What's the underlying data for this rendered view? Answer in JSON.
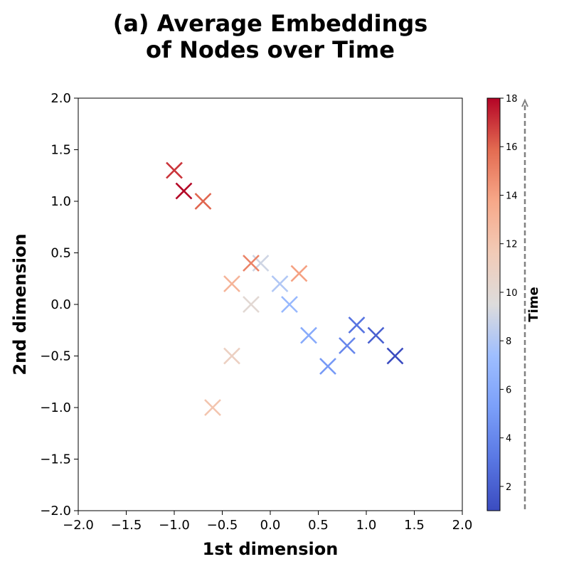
{
  "chart_data": {
    "type": "scatter",
    "title_line1": "(a) Average Embeddings",
    "title_line2": "of Nodes over Time",
    "xlabel": "1st dimension",
    "ylabel": "2nd dimension",
    "xlim": [
      -2.0,
      2.0
    ],
    "ylim": [
      -2.0,
      2.0
    ],
    "xticks": [
      "−2.0",
      "−1.5",
      "−1.0",
      "−0.5",
      "0.0",
      "0.5",
      "1.0",
      "1.5",
      "2.0"
    ],
    "yticks": [
      "−2.0",
      "−1.5",
      "−1.0",
      "−0.5",
      "0.0",
      "0.5",
      "1.0",
      "1.5",
      "2.0"
    ],
    "grid": false,
    "marker": "x",
    "colormap": "coolwarm",
    "colorbar": {
      "label": "Time",
      "range": [
        1,
        18
      ],
      "ticks": [
        "2",
        "4",
        "6",
        "8",
        "10",
        "12",
        "14",
        "16",
        "18"
      ]
    },
    "points": [
      {
        "time": 1,
        "x": 1.3,
        "y": -0.5
      },
      {
        "time": 2,
        "x": 1.1,
        "y": -0.3
      },
      {
        "time": 3,
        "x": 0.9,
        "y": -0.2
      },
      {
        "time": 4,
        "x": 0.8,
        "y": -0.4
      },
      {
        "time": 5,
        "x": 0.6,
        "y": -0.6
      },
      {
        "time": 6,
        "x": 0.4,
        "y": -0.3
      },
      {
        "time": 7,
        "x": 0.2,
        "y": 0.0
      },
      {
        "time": 8,
        "x": 0.1,
        "y": 0.2
      },
      {
        "time": 9,
        "x": -0.1,
        "y": 0.4
      },
      {
        "time": 10,
        "x": -0.2,
        "y": 0.0
      },
      {
        "time": 11,
        "x": -0.4,
        "y": -0.5
      },
      {
        "time": 12,
        "x": -0.6,
        "y": -1.0
      },
      {
        "time": 13,
        "x": -0.4,
        "y": 0.2
      },
      {
        "time": 14,
        "x": 0.3,
        "y": 0.3
      },
      {
        "time": 15,
        "x": -0.2,
        "y": 0.4
      },
      {
        "time": 16,
        "x": -0.7,
        "y": 1.0
      },
      {
        "time": 17,
        "x": -1.0,
        "y": 1.3
      },
      {
        "time": 18,
        "x": -0.9,
        "y": 1.1
      }
    ]
  }
}
